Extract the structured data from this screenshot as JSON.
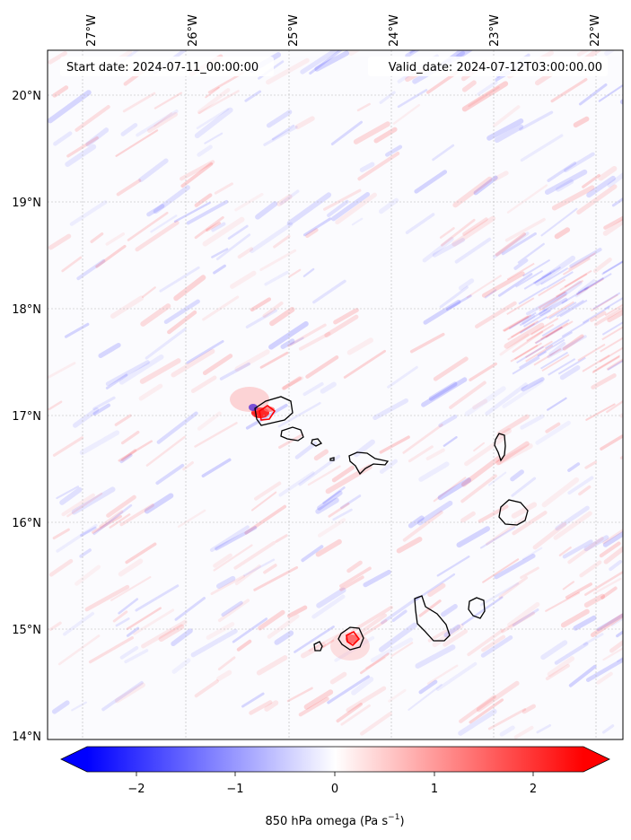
{
  "header": {
    "start_date": "Start date: 2024-07-11_00:00:00",
    "valid_date": "Valid_date: 2024-07-12T03:00:00.00"
  },
  "longitude_labels": [
    "27°W",
    "26°W",
    "25°W",
    "24°W",
    "23°W",
    "22°W"
  ],
  "latitude_labels": [
    "20°N",
    "19°N",
    "18°N",
    "17°N",
    "16°N",
    "15°N",
    "14°N"
  ],
  "colorbar": {
    "tick_labels": [
      "−2",
      "−1",
      "0",
      "1",
      "2"
    ],
    "label_main": "850 hPa omega (Pa s",
    "label_sup": "−1",
    "label_end": ")",
    "colors": {
      "negative": "#0000ff",
      "zero": "#ffffff",
      "positive": "#ff0000"
    }
  },
  "map": {
    "variable": "omega",
    "level": "850 hPa",
    "features": [
      "islands-coastlines",
      "graticule",
      "wave-streaks"
    ]
  }
}
